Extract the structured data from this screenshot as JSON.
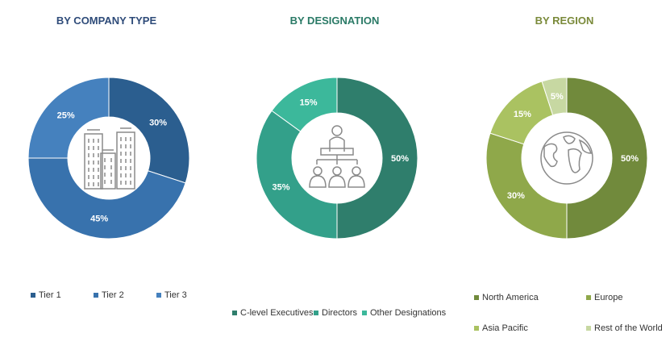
{
  "chart_data": [
    {
      "type": "pie",
      "title": "BY COMPANY TYPE",
      "title_color": "#2e4b79",
      "categories": [
        "Tier 1",
        "Tier 2",
        "Tier 3"
      ],
      "values": [
        30,
        45,
        25
      ],
      "value_labels": [
        "30%",
        "45%",
        "25%"
      ],
      "colors": [
        "#2b5e8f",
        "#3872ad",
        "#4581be"
      ],
      "legend_placement": "bottom",
      "center_icon": "buildings-icon"
    },
    {
      "type": "pie",
      "title": "BY DESIGNATION",
      "title_color": "#2a7a66",
      "categories": [
        "C-level Executives",
        "Directors",
        "Other Designations"
      ],
      "values": [
        50,
        35,
        15
      ],
      "value_labels": [
        "50%",
        "35%",
        "15%"
      ],
      "colors": [
        "#2f7e6c",
        "#33a08a",
        "#3cb89b"
      ],
      "legend_placement": "bottom",
      "center_icon": "people-presentation-icon"
    },
    {
      "type": "pie",
      "title": "BY REGION",
      "title_color": "#7a8a3a",
      "categories": [
        "North America",
        "Europe",
        "Asia Pacific",
        "Rest of the World"
      ],
      "values": [
        50,
        30,
        15,
        5
      ],
      "value_labels": [
        "50%",
        "30%",
        "15%",
        "5%"
      ],
      "colors": [
        "#718a3c",
        "#8fa84a",
        "#aac261",
        "#c7d8a2"
      ],
      "legend_placement": "bottom",
      "center_icon": "globe-icon"
    }
  ]
}
